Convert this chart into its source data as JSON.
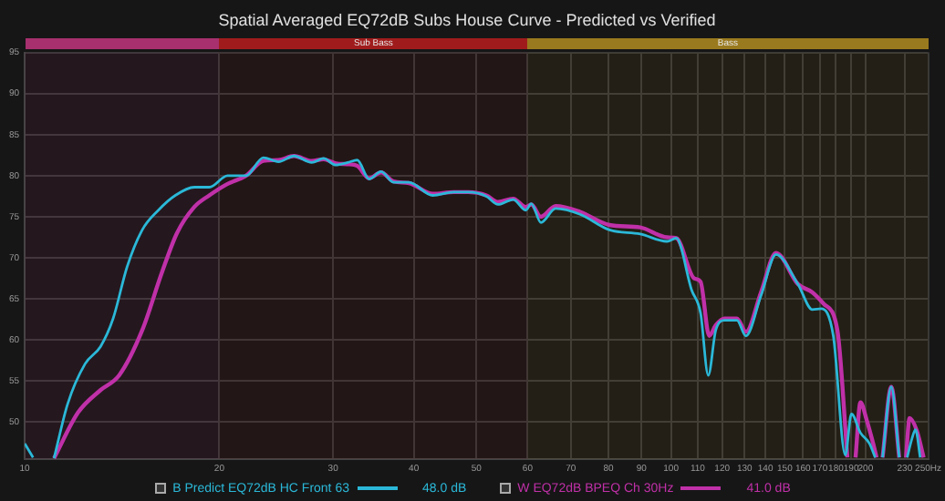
{
  "chart_data": {
    "type": "line",
    "title": "Spatial Averaged EQ72dB Subs House Curve - Predicted vs Verified",
    "log": "x",
    "grid": true,
    "legend": "bottom",
    "line_style": "solid",
    "marker": "none",
    "xlim": [
      10,
      250
    ],
    "ylim": [
      45.5,
      95
    ],
    "xticks": [
      10,
      20,
      30,
      40,
      50,
      60,
      70,
      80,
      90,
      100,
      110,
      120,
      130,
      140,
      150,
      160,
      170,
      180,
      190,
      200,
      230,
      {
        "value": 250,
        "label": "250Hz"
      }
    ],
    "yticks": [
      50,
      55,
      60,
      65,
      70,
      75,
      80,
      85,
      90,
      95
    ],
    "bands": [
      {
        "axis": "x",
        "from": 10,
        "to": 20,
        "label": null,
        "color": "#a8306e"
      },
      {
        "axis": "x",
        "from": 20,
        "to": 60,
        "label": "Sub Bass",
        "color": "#a01c1c"
      },
      {
        "axis": "x",
        "from": 60,
        "to": 250,
        "label": "Bass",
        "color": "#9a7a1e"
      }
    ],
    "annotations": [
      "48.0 dB",
      "41.0 dB"
    ],
    "series": [
      {
        "name": "B Predict EQ72dB HC Front 63",
        "color": "#2bb8d8",
        "x": [
          10,
          10.3,
          10.7,
          11.1,
          11.65,
          12.4,
          13.1,
          13.7,
          14.4,
          15.2,
          16.1,
          17.1,
          18.3,
          19.3,
          20.6,
          22,
          23.4,
          24.7,
          26.1,
          27.8,
          29,
          30.3,
          31.6,
          32.7,
          34.1,
          35.6,
          37.2,
          39.3,
          42.8,
          46.1,
          48.6,
          51.8,
          54,
          57,
          59.6,
          60.8,
          62.9,
          66.3,
          72.3,
          80.3,
          89.6,
          98.6,
          101.9,
          107.6,
          111.1,
          114.2,
          117.3,
          121,
          126.5,
          130.6,
          137.8,
          145.4,
          157.2,
          165.5,
          170.8,
          178.3,
          186.1,
          190.2,
          196.4,
          202.8,
          207,
          209.5,
          212.5,
          219.2,
          225.5,
          228.3,
          232,
          236,
          239,
          243
        ],
        "values": [
          47.4,
          45.7,
          null,
          45.6,
          52.2,
          57.1,
          59.2,
          62.6,
          68.9,
          73.4,
          75.8,
          77.6,
          78.6,
          78.6,
          80,
          80,
          82.2,
          81.7,
          82.4,
          81.6,
          82.1,
          81.3,
          81.6,
          81.9,
          79.6,
          80.5,
          79.2,
          79.2,
          77.6,
          78,
          78,
          77.5,
          76.5,
          77.1,
          75.8,
          76.6,
          74.3,
          76,
          75.3,
          73.4,
          72.9,
          72,
          72.4,
          66.1,
          63.3,
          55.7,
          61.2,
          62.4,
          62.4,
          60.5,
          65.4,
          70.4,
          66.8,
          63.7,
          63.8,
          60.5,
          46,
          51,
          48.7,
          47.4,
          45.7,
          null,
          45.7,
          54.3,
          45.7,
          null,
          45.7,
          48,
          49.1,
          45.7
        ]
      },
      {
        "name": "W EQ72dB BPEQ Ch 30Hz",
        "color": "#c030a8",
        "x": [
          11.1,
          12.1,
          13.1,
          14,
          15.2,
          16.3,
          17.2,
          18.3,
          19.3,
          20.6,
          22,
          23.4,
          24.7,
          26.1,
          27.8,
          29,
          30.3,
          31.6,
          32.7,
          34.1,
          35.6,
          37.2,
          39.3,
          42.8,
          46.1,
          48.6,
          51.8,
          54,
          57,
          59.6,
          60.8,
          62.9,
          66.3,
          72.3,
          80.3,
          89.6,
          98.6,
          101.9,
          108.6,
          111.1,
          114.6,
          117.3,
          121,
          126.5,
          130.6,
          137.8,
          145.4,
          157.2,
          165.5,
          172.3,
          180.9,
          187.5,
          191,
          193,
          196.4,
          200.9,
          205.5,
          208,
          210,
          212.5,
          219.2,
          225.5,
          228.3,
          231,
          234,
          240,
          246
        ],
        "values": [
          45.6,
          51.2,
          53.9,
          55.7,
          61.2,
          68.2,
          73,
          76.2,
          77.6,
          79,
          80,
          81.8,
          81.9,
          82.4,
          81.8,
          82,
          81.5,
          81.4,
          81.2,
          79.7,
          80.4,
          79.3,
          79.1,
          77.8,
          78,
          78,
          77.6,
          76.8,
          77.2,
          76.2,
          76.5,
          75,
          76.3,
          75.6,
          74,
          73.7,
          72.5,
          72.4,
          67.5,
          67.1,
          60.5,
          61.8,
          62.6,
          62.6,
          61,
          65.8,
          70.6,
          66.8,
          65.8,
          64.4,
          61.2,
          45.7,
          null,
          45.7,
          52.4,
          50.2,
          47.4,
          45.7,
          null,
          45.7,
          54.3,
          45.7,
          null,
          45.7,
          50.5,
          49,
          45.7
        ]
      }
    ]
  }
}
